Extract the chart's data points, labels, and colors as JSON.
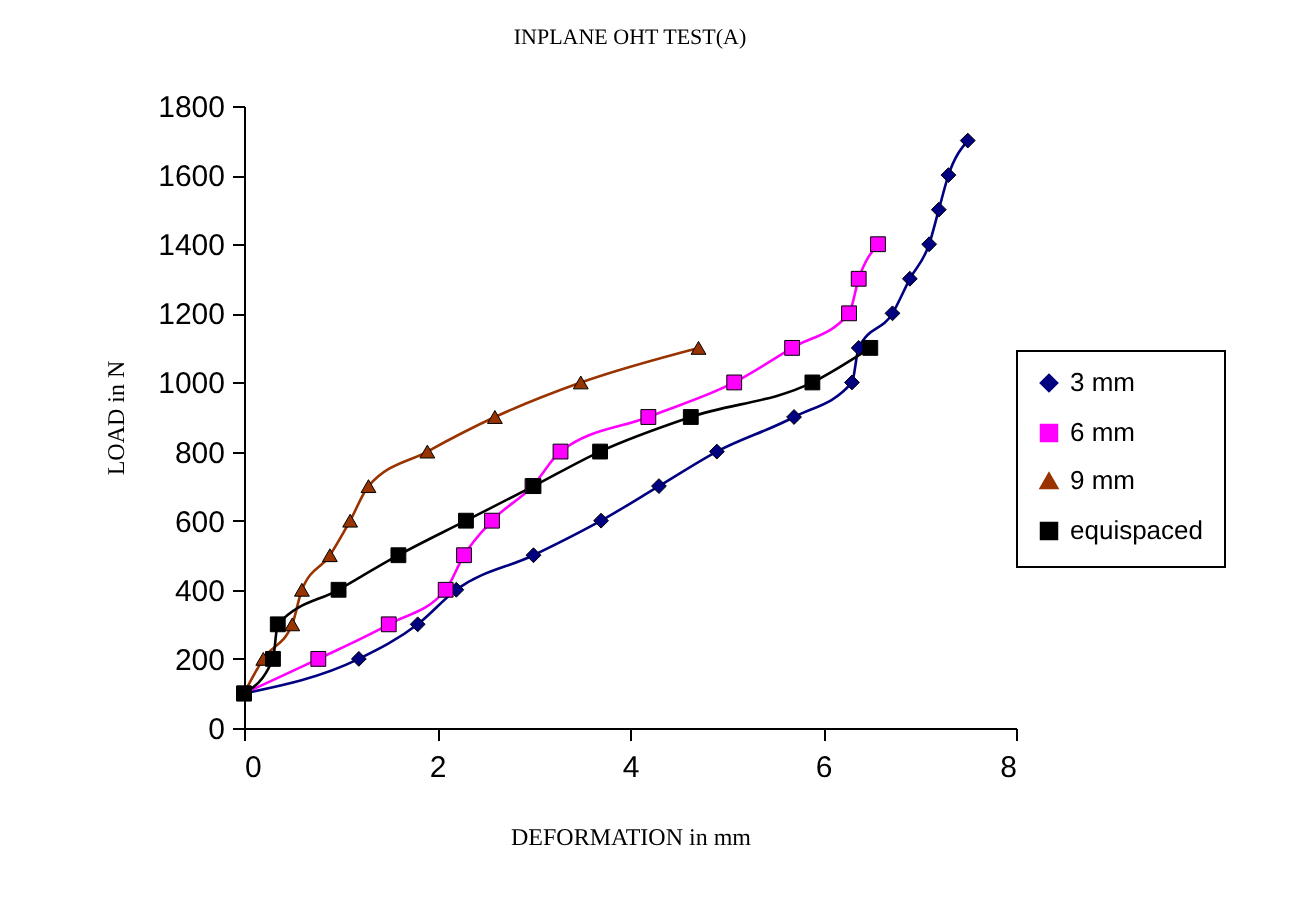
{
  "chart_data": {
    "type": "line",
    "title": "INPLANE OHT TEST(A)",
    "xlabel": "DEFORMATION in mm",
    "ylabel": "LOAD in N",
    "xlim": [
      0,
      8
    ],
    "xticks": [
      0,
      2,
      4,
      6,
      8
    ],
    "ylim": [
      0,
      1800
    ],
    "yticks": [
      0,
      200,
      400,
      600,
      800,
      1000,
      1200,
      1400,
      1600,
      1800
    ],
    "grid": false,
    "legend": "right",
    "series": [
      {
        "name": "3 mm",
        "color": "#000080",
        "marker": "diamond",
        "x": [
          0,
          1.19,
          1.8,
          2.2,
          3.0,
          3.7,
          4.3,
          4.9,
          5.7,
          6.3,
          6.37,
          6.72,
          6.9,
          7.1,
          7.2,
          7.3,
          7.5
        ],
        "values": [
          100,
          200,
          300,
          400,
          500,
          600,
          700,
          800,
          900,
          1000,
          1100,
          1200,
          1300,
          1400,
          1500,
          1600,
          1700
        ]
      },
      {
        "name": "6 mm",
        "color": "#ff00ff",
        "marker": "square",
        "x": [
          0,
          0.77,
          1.5,
          2.09,
          2.28,
          2.57,
          2.99,
          3.28,
          4.19,
          5.08,
          5.68,
          6.27,
          6.37,
          6.57
        ],
        "values": [
          100,
          200,
          300,
          400,
          500,
          600,
          700,
          800,
          900,
          1000,
          1100,
          1200,
          1300,
          1400
        ]
      },
      {
        "name": "9 mm",
        "color": "#993300",
        "marker": "triangle",
        "x": [
          0,
          0.2,
          0.5,
          0.6,
          0.89,
          1.1,
          1.29,
          1.9,
          2.6,
          3.49,
          4.71
        ],
        "values": [
          100,
          200,
          300,
          400,
          500,
          600,
          700,
          800,
          900,
          1000,
          1100
        ]
      },
      {
        "name": "equispaced",
        "color": "#000000",
        "marker": "square",
        "x": [
          0,
          0.3,
          0.35,
          0.98,
          1.6,
          2.3,
          3.0,
          3.69,
          4.63,
          5.89,
          6.49
        ],
        "values": [
          100,
          200,
          300,
          400,
          500,
          600,
          700,
          800,
          900,
          1000,
          1100
        ]
      }
    ]
  }
}
